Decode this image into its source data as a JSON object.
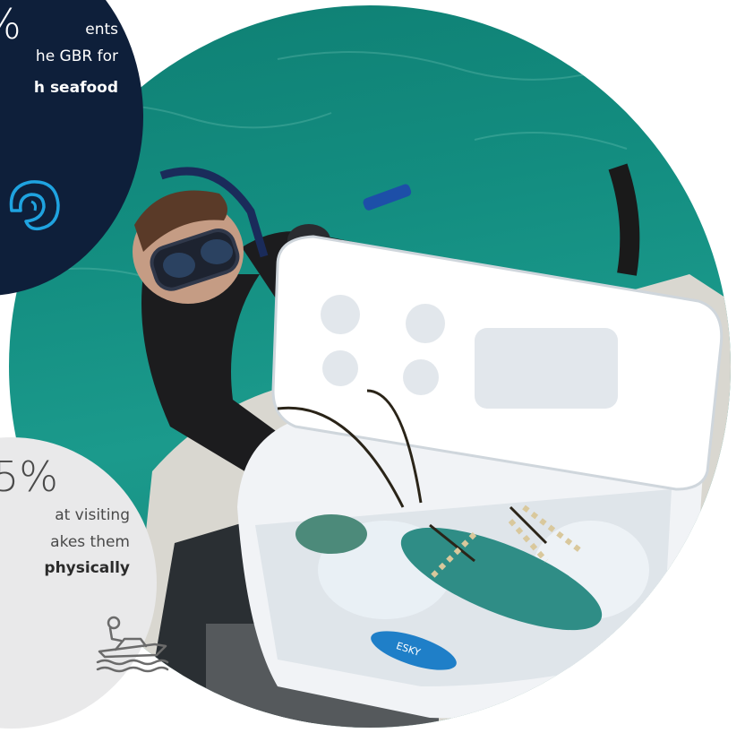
{
  "stat_top": {
    "percent": "%",
    "line1": "ents",
    "line2": "he GBR for",
    "line3": "h seafood",
    "icon": "shell-icon"
  },
  "stat_bottom": {
    "percent": "5%",
    "line1": "at visiting",
    "line2": "akes them",
    "line3": "physically",
    "icon": "boat-icon"
  },
  "photo": {
    "cooler_brand": "ESKY"
  },
  "colors": {
    "dark_bubble": "#0e1f3a",
    "light_bubble": "#e9e9ea",
    "accent_blue": "#1fa3e0",
    "water": "#138d80"
  }
}
